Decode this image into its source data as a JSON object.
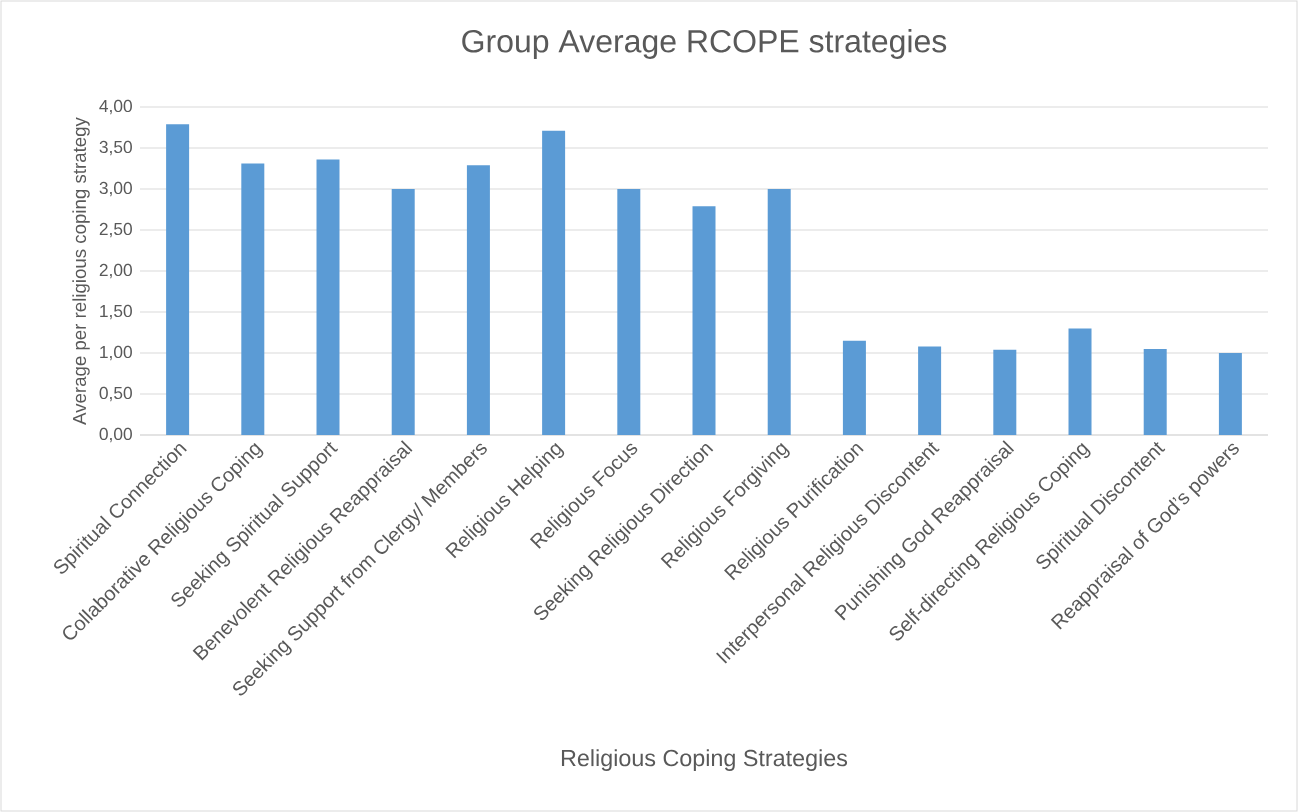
{
  "chart_data": {
    "type": "bar",
    "title": "Group Average RCOPE strategies",
    "xlabel": "Religious Coping Strategies",
    "ylabel": "Average per religious coping strategy",
    "categories": [
      "Spiritual Connection",
      "Collaborative Religious Coping",
      "Seeking Spiritual Support",
      "Benevolent Religious Reappraisal",
      "Seeking Support from Clergy/ Members",
      "Religious Helping",
      "Religious Focus",
      "Seeking Religious Direction",
      "Religious Forgiving",
      "Religious Purification",
      "Interpersonal Religious Discontent",
      "Punishing God Reappraisal",
      "Self-directing Religious Coping",
      "Spiritual Discontent",
      "Reappraisal of God’s powers"
    ],
    "values": [
      3.79,
      3.31,
      3.36,
      3.0,
      3.29,
      3.71,
      3.0,
      2.79,
      3.0,
      1.15,
      1.08,
      1.04,
      1.3,
      1.05,
      1.0
    ],
    "color": "#5b9bd5",
    "ylim": [
      0,
      4
    ],
    "yticks": [
      {
        "value": 0,
        "label": "0,00"
      },
      {
        "value": 0.5,
        "label": "0,50"
      },
      {
        "value": 1,
        "label": "1,00"
      },
      {
        "value": 1.5,
        "label": "1,50"
      },
      {
        "value": 2,
        "label": "2,00"
      },
      {
        "value": 2.5,
        "label": "2,50"
      },
      {
        "value": 3,
        "label": "3,00"
      },
      {
        "value": 3.5,
        "label": "3,50"
      },
      {
        "value": 4,
        "label": "4,00"
      }
    ],
    "grid": "y"
  }
}
